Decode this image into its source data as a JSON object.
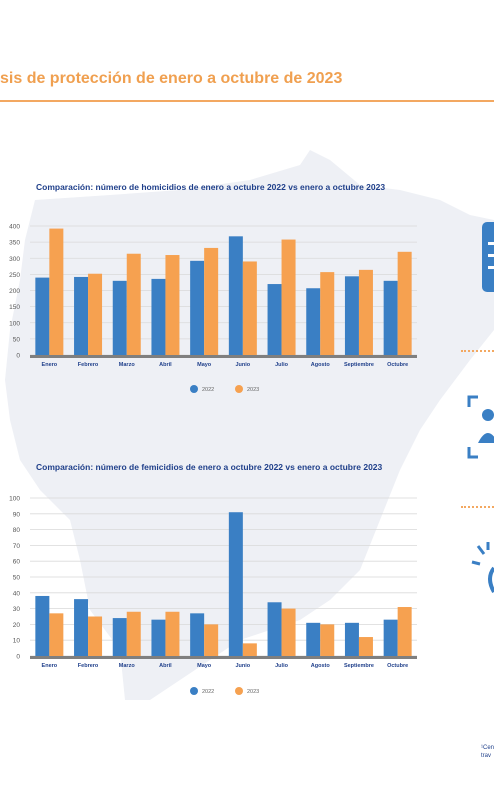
{
  "page": {
    "title": "sis de protección de enero a octubre de 2023",
    "footnote_line1": "¹Cen",
    "footnote_line2": "trav"
  },
  "colors": {
    "s2022": "#3A7FC4",
    "s2023": "#F6A150",
    "grid": "#d9d9d9",
    "baseline": "#7f7f7f",
    "title": "#1F3F8A",
    "accent": "#F0A050"
  },
  "icons": [
    "document-list-icon",
    "people-frame-icon",
    "sun-person-icon"
  ],
  "chart_data": [
    {
      "type": "bar",
      "title": "Comparación: número de homicidios de enero a  octubre 2022 vs enero a  octubre 2023",
      "categories": [
        "Enero",
        "Febrero",
        "Marzo",
        "Abril",
        "Mayo",
        "Junio",
        "Julio",
        "Agosto",
        "Septiembre",
        "Octubre"
      ],
      "ylim": [
        0,
        400
      ],
      "yticks": [
        0,
        50,
        100,
        150,
        200,
        250,
        300,
        350,
        400
      ],
      "series": [
        {
          "name": "2022",
          "values": [
            240,
            242,
            230,
            236,
            292,
            368,
            220,
            207,
            244,
            230
          ]
        },
        {
          "name": "2023",
          "values": [
            392,
            252,
            314,
            310,
            332,
            290,
            358,
            257,
            264,
            320
          ]
        }
      ],
      "legend": "bottom-center",
      "grid": true
    },
    {
      "type": "bar",
      "title": "Comparación: número de femicidios de enero a  octubre 2022 vs enero a  octubre 2023",
      "categories": [
        "Enero",
        "Febrero",
        "Marzo",
        "Abril",
        "Mayo",
        "Junio",
        "Julio",
        "Agosto",
        "Septiembre",
        "Octubre"
      ],
      "ylim": [
        0,
        100
      ],
      "yticks": [
        0,
        10,
        20,
        30,
        40,
        50,
        60,
        70,
        80,
        90,
        100
      ],
      "series": [
        {
          "name": "2022",
          "values": [
            38,
            36,
            24,
            23,
            27,
            91,
            34,
            21,
            21,
            23
          ]
        },
        {
          "name": "2023",
          "values": [
            27,
            25,
            28,
            28,
            20,
            8,
            30,
            20,
            12,
            31
          ]
        }
      ],
      "legend": "bottom-center",
      "grid": true
    }
  ]
}
